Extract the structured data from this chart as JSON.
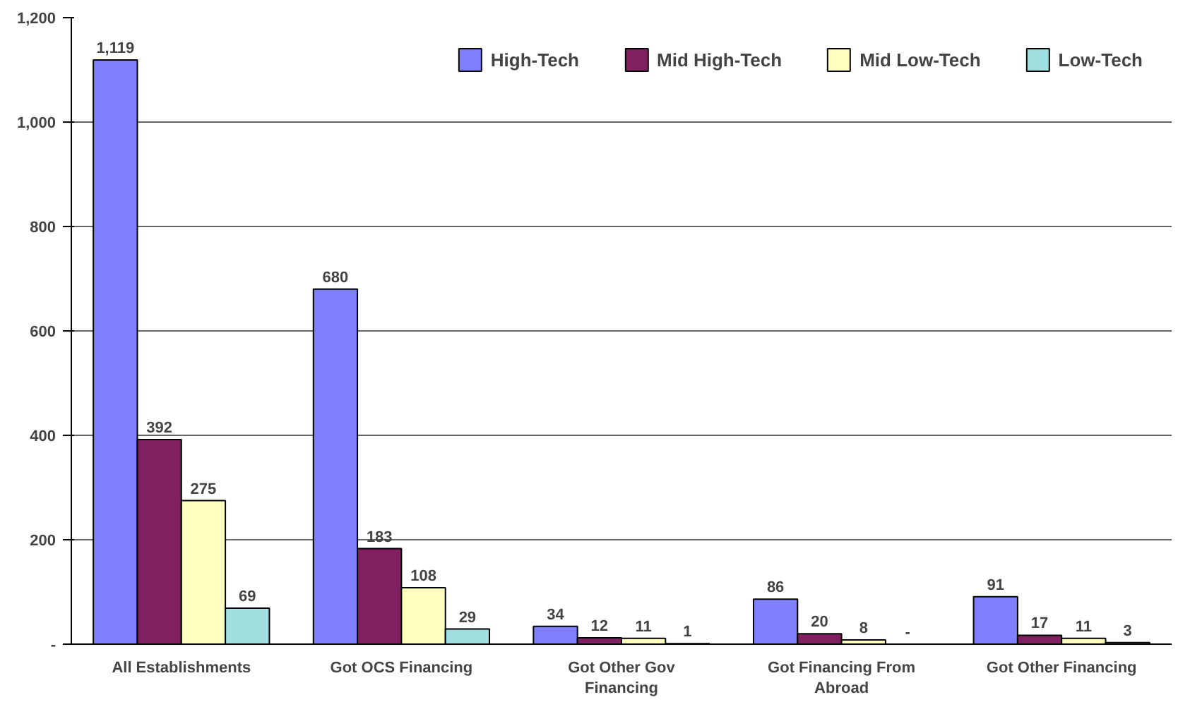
{
  "chart_data": {
    "type": "bar",
    "categories": [
      "All Establishments",
      "Got OCS Financing",
      "Got Other Gov Financing",
      "Got Financing From Abroad",
      "Got Other Financing"
    ],
    "series": [
      {
        "name": "High-Tech",
        "color": "#8080ff",
        "values": [
          1119,
          680,
          34,
          86,
          91
        ],
        "value_labels": [
          "1,119",
          "680",
          "34",
          "86",
          "91"
        ]
      },
      {
        "name": "Mid High-Tech",
        "color": "#802060",
        "values": [
          392,
          183,
          12,
          20,
          17
        ],
        "value_labels": [
          "392",
          "183",
          "12",
          "20",
          "17"
        ]
      },
      {
        "name": "Mid Low-Tech",
        "color": "#ffffc0",
        "values": [
          275,
          108,
          11,
          8,
          11
        ],
        "value_labels": [
          "275",
          "108",
          "11",
          "8",
          "11"
        ]
      },
      {
        "name": "Low-Tech",
        "color": "#a0e0e0",
        "values": [
          69,
          29,
          1,
          0,
          3
        ],
        "value_labels": [
          "69",
          "29",
          "1",
          "-",
          "3"
        ]
      }
    ],
    "ylim": [
      0,
      1200
    ],
    "yticks": [
      {
        "value": 0,
        "label": "-"
      },
      {
        "value": 200,
        "label": "200"
      },
      {
        "value": 400,
        "label": "400"
      },
      {
        "value": 600,
        "label": "600"
      },
      {
        "value": 800,
        "label": "800"
      },
      {
        "value": 1000,
        "label": "1,000"
      },
      {
        "value": 1200,
        "label": "1,200"
      }
    ],
    "grid": "y",
    "legend": "top right"
  }
}
